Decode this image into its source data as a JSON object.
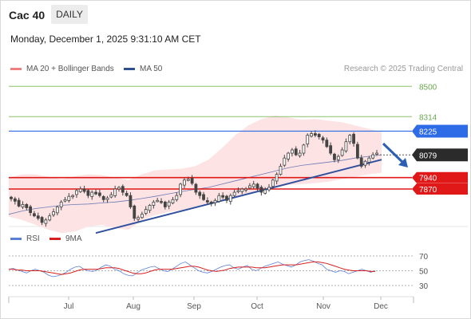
{
  "header": {
    "instrument": "Cac 40",
    "timeframe": "DAILY",
    "datetime": "Monday, December 1, 2025 9:31:10 AM CET",
    "credit": "Research © 2025 Trading Central"
  },
  "legend_main": [
    {
      "label": "MA 20 + Bollinger Bands",
      "color": "#f08080"
    },
    {
      "label": "MA 50",
      "color": "#2f4f8f"
    }
  ],
  "legend_rsi": [
    {
      "label": "RSI",
      "color": "#5b7fd6"
    },
    {
      "label": "9MA",
      "color": "#d62020"
    }
  ],
  "colors": {
    "target_line": "#8dc06a",
    "pivot_line": "#2e6be6",
    "support_line": "#e01818",
    "trend_line": "#2f4f9f",
    "candle": "#444444",
    "bollinger_fill": "#fde3e3",
    "price_box": "#2b2b2b"
  },
  "chart_data": [
    {
      "type": "candlestick",
      "title": "Cac 40",
      "xlabel": "",
      "ylabel": "",
      "x_tick_labels": [
        "Jul",
        "Aug",
        "Sep",
        "Oct",
        "Nov",
        "Dec"
      ],
      "ylim": [
        7640,
        8560
      ],
      "grid": false,
      "price_levels": [
        {
          "value": 8500,
          "label": "8500",
          "kind": "target"
        },
        {
          "value": 8314,
          "label": "8314",
          "kind": "target"
        },
        {
          "value": 8225,
          "label": "8225",
          "kind": "pivot"
        },
        {
          "value": 8079,
          "label": "8079",
          "kind": "last_price"
        },
        {
          "value": 7940,
          "label": "7940",
          "kind": "support"
        },
        {
          "value": 7870,
          "label": "7870",
          "kind": "support"
        }
      ],
      "close_series": [
        7810,
        7795,
        7765,
        7775,
        7755,
        7725,
        7705,
        7690,
        7665,
        7680,
        7705,
        7730,
        7760,
        7790,
        7805,
        7825,
        7830,
        7860,
        7870,
        7855,
        7830,
        7850,
        7840,
        7830,
        7805,
        7815,
        7835,
        7870,
        7880,
        7850,
        7830,
        7760,
        7690,
        7695,
        7715,
        7745,
        7770,
        7790,
        7800,
        7790,
        7760,
        7790,
        7805,
        7830,
        7900,
        7925,
        7930,
        7905,
        7850,
        7830,
        7805,
        7790,
        7780,
        7800,
        7830,
        7820,
        7800,
        7830,
        7850,
        7860,
        7870,
        7870,
        7890,
        7900,
        7875,
        7850,
        7865,
        7880,
        7925,
        7960,
        8010,
        8060,
        8090,
        8110,
        8080,
        8090,
        8140,
        8200,
        8210,
        8200,
        8190,
        8170,
        8130,
        8090,
        8050,
        8070,
        8110,
        8160,
        8200,
        8150,
        8060,
        8010,
        8040,
        8060,
        8080,
        8090
      ],
      "ma50_approx": [
        7715,
        7735,
        7750,
        7760,
        7770,
        7775,
        7778,
        7785,
        7790,
        7800,
        7812,
        7825,
        7840,
        7855,
        7868,
        7880,
        7900,
        7920,
        7940,
        7960,
        7980,
        8000,
        8015,
        8025,
        8035,
        8045,
        8060,
        8070,
        8080
      ],
      "bollinger_upper_approx": [
        7940,
        7960,
        7960,
        7945,
        7930,
        7950,
        7960,
        7955,
        7940,
        7925,
        7960,
        7985,
        7990,
        7995,
        8010,
        8050,
        8120,
        8200,
        8260,
        8300,
        8320,
        8310,
        8295,
        8300,
        8290,
        8280,
        8260,
        8240,
        8220
      ],
      "bollinger_lower_approx": [
        7700,
        7680,
        7650,
        7620,
        7600,
        7610,
        7640,
        7650,
        7630,
        7620,
        7680,
        7710,
        7730,
        7740,
        7760,
        7775,
        7800,
        7820,
        7840,
        7860,
        7880,
        7895,
        7900,
        7905,
        7915,
        7930,
        7945,
        7960,
        7970
      ],
      "trend_line": {
        "from_value": 7600,
        "to_value": 8050
      },
      "projection": "down"
    },
    {
      "type": "line",
      "title": "RSI",
      "ylim": [
        20,
        80
      ],
      "y_ticks": [
        70,
        50,
        30
      ],
      "series": [
        {
          "name": "RSI",
          "values": [
            52,
            53,
            51,
            49,
            47,
            50,
            52,
            50,
            48,
            44,
            42,
            43,
            45,
            48,
            52,
            55,
            56,
            52,
            50,
            49,
            51,
            55,
            58,
            56,
            52,
            50,
            46,
            44,
            43,
            47,
            51,
            53,
            55,
            56,
            53,
            50,
            49,
            52,
            56,
            60,
            62,
            58,
            54,
            50,
            48,
            47,
            49,
            52,
            55,
            57,
            58,
            54,
            52,
            55,
            57,
            52,
            50,
            53,
            56,
            58,
            60,
            62,
            59,
            57,
            55,
            58,
            62,
            64,
            65,
            63,
            60,
            58,
            52,
            50,
            48,
            50,
            49,
            46,
            48,
            50,
            52,
            50,
            48,
            50
          ]
        },
        {
          "name": "9MA",
          "values": [
            52,
            52,
            51,
            51,
            50,
            50,
            50,
            50,
            49,
            48,
            47,
            46,
            45,
            46,
            47,
            49,
            51,
            52,
            52,
            52,
            52,
            53,
            54,
            54,
            54,
            53,
            51,
            49,
            47,
            46,
            46,
            47,
            49,
            51,
            52,
            52,
            52,
            52,
            53,
            54,
            55,
            56,
            56,
            55,
            53,
            51,
            50,
            49,
            50,
            51,
            53,
            54,
            55,
            55,
            55,
            55,
            54,
            54,
            54,
            55,
            56,
            57,
            58,
            58,
            58,
            58,
            59,
            60,
            61,
            62,
            62,
            61,
            60,
            58,
            56,
            54,
            52,
            51,
            50,
            50,
            50,
            50,
            49,
            49
          ]
        }
      ]
    }
  ]
}
